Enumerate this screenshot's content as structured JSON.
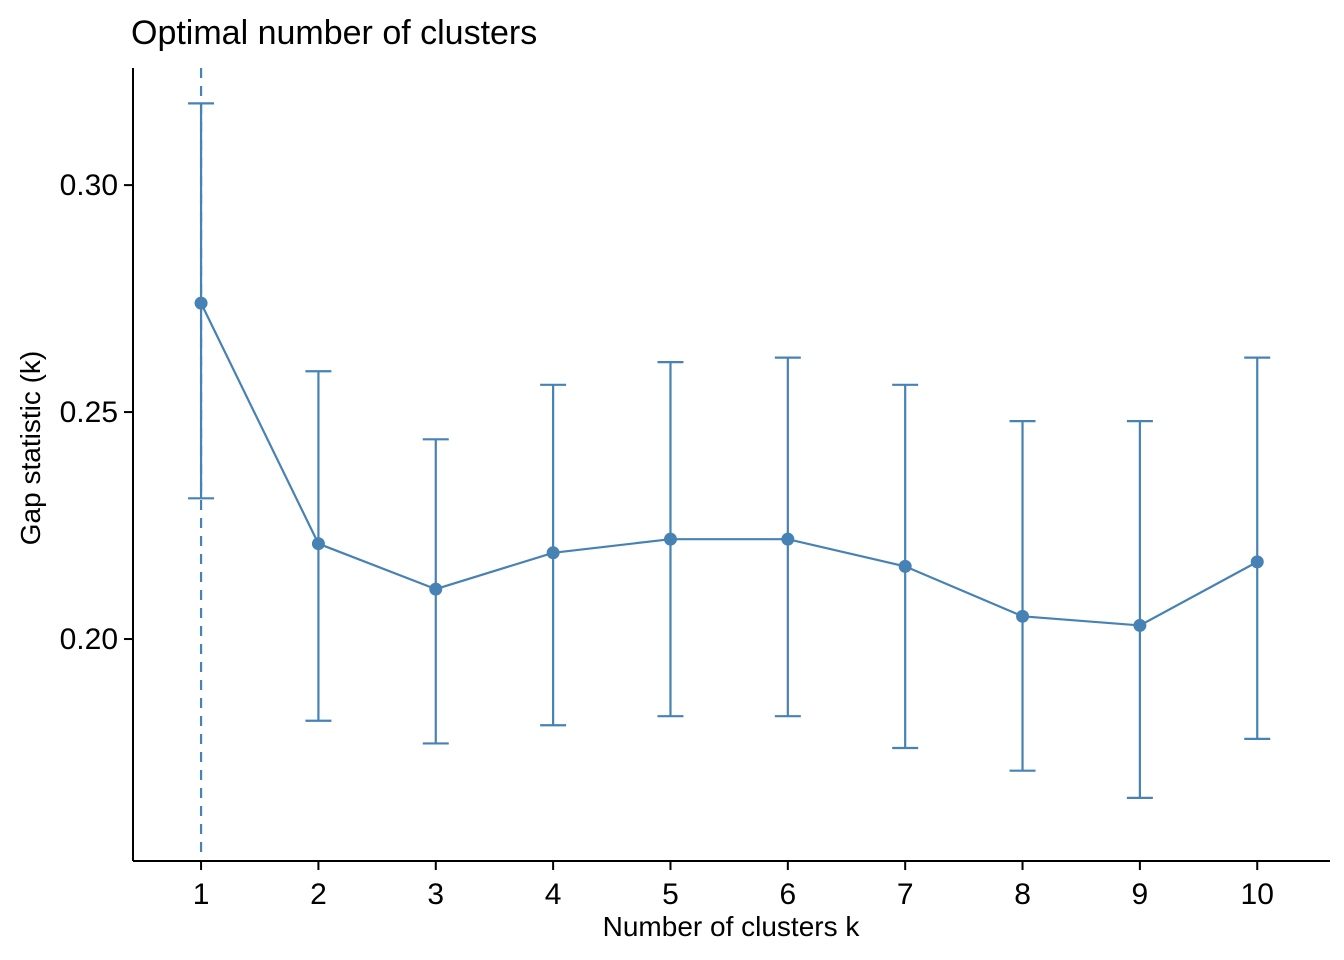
{
  "chart_data": {
    "type": "line",
    "title": "Optimal number of clusters",
    "xlabel": "Number of clusters k",
    "ylabel": "Gap statistic (k)",
    "x": [
      1,
      2,
      3,
      4,
      5,
      6,
      7,
      8,
      9,
      10
    ],
    "series": [
      {
        "name": "Gap statistic",
        "values": [
          0.274,
          0.221,
          0.211,
          0.219,
          0.222,
          0.222,
          0.216,
          0.205,
          0.203,
          0.217
        ],
        "error_low": [
          0.231,
          0.182,
          0.177,
          0.181,
          0.183,
          0.183,
          0.176,
          0.171,
          0.165,
          0.178
        ],
        "error_high": [
          0.318,
          0.259,
          0.244,
          0.256,
          0.261,
          0.262,
          0.256,
          0.248,
          0.248,
          0.262
        ]
      }
    ],
    "x_ticks": [
      1,
      2,
      3,
      4,
      5,
      6,
      7,
      8,
      9,
      10
    ],
    "y_ticks": [
      0.2,
      0.25,
      0.3
    ],
    "y_tick_labels": [
      "0.20",
      "0.25",
      "0.30"
    ],
    "xlim": [
      0.42,
      10.62
    ],
    "ylim": [
      0.1511,
      0.3258
    ],
    "vline_x": 1,
    "vline_style": "dashed",
    "grid": false,
    "legend_position": "none",
    "accent_color": "#4682B4",
    "axis_color": "#000000",
    "text_color": "#000000"
  }
}
